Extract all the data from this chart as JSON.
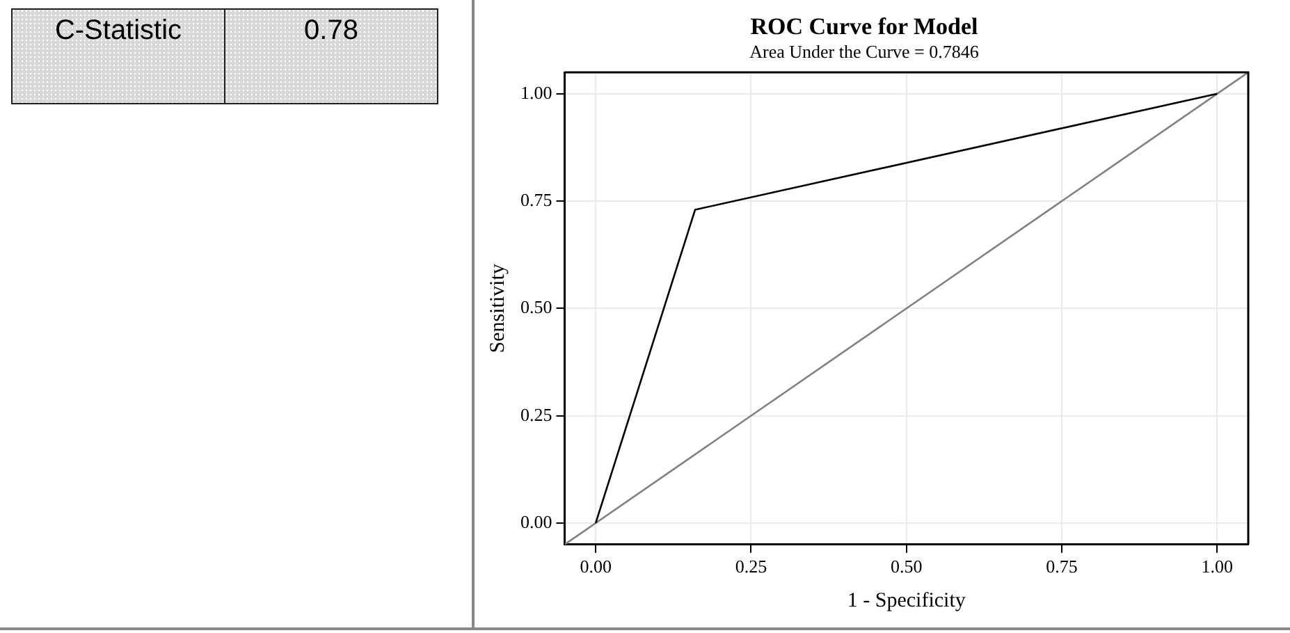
{
  "chart_data": [
    {
      "type": "other",
      "categories": [
        "C-Statistic"
      ],
      "values": [
        0.78
      ],
      "data_labels": true
    },
    {
      "type": "line",
      "title": "ROC Curve for Model",
      "subtitle": "Area Under the Curve = 0.7846",
      "xlabel": "1 - Specificity",
      "ylabel": "Sensitivity",
      "series": [
        {
          "color": "#000000",
          "x": [
            0,
            0.16,
            1
          ],
          "values": [
            0,
            0.73,
            1
          ]
        },
        {
          "color": "#808080",
          "x": [
            -0.05,
            1.05
          ],
          "values": [
            -0.05,
            1.05
          ]
        }
      ],
      "xlim": [
        -0.05,
        1.05
      ],
      "ylim": [
        -0.05,
        1.05
      ],
      "xticks": [
        {
          "value": 0,
          "label": "0.00"
        },
        {
          "value": 0.25,
          "label": "0.25"
        },
        {
          "value": 0.5,
          "label": "0.50"
        },
        {
          "value": 0.75,
          "label": "0.75"
        },
        {
          "value": 1,
          "label": "1.00"
        }
      ],
      "yticks": [
        {
          "value": 0,
          "label": "0.00"
        },
        {
          "value": 0.25,
          "label": "0.25"
        },
        {
          "value": 0.5,
          "label": "0.50"
        },
        {
          "value": 0.75,
          "label": "0.75"
        },
        {
          "value": 1,
          "label": "1.00"
        }
      ],
      "grid": true,
      "legend": false,
      "marker": "none",
      "line_style": "solid"
    }
  ]
}
